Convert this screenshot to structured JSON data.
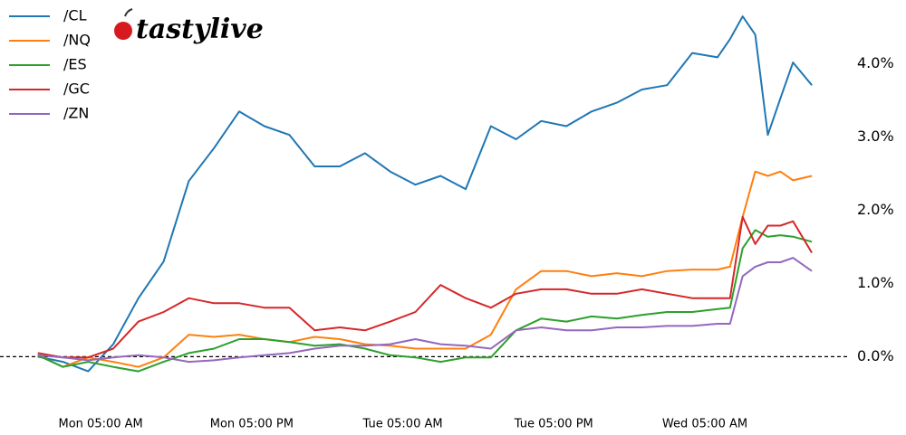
{
  "logo": "tastylive",
  "chart_data": {
    "type": "line",
    "x": [
      0,
      2,
      4,
      6,
      8,
      10,
      12,
      14,
      16,
      18,
      20,
      22,
      24,
      26,
      28,
      30,
      32,
      34,
      36,
      38,
      40,
      42,
      44,
      46,
      48,
      50,
      52,
      54,
      55,
      56,
      57,
      58,
      59,
      60,
      61.5
    ],
    "series": [
      {
        "name": "/CL",
        "color": "#1f77b4",
        "values": [
          0.0,
          -0.07,
          -0.2,
          0.17,
          0.8,
          1.3,
          2.4,
          2.85,
          3.35,
          3.15,
          3.03,
          2.6,
          2.6,
          2.78,
          2.53,
          2.35,
          2.47,
          2.29,
          3.15,
          2.97,
          3.22,
          3.15,
          3.35,
          3.47,
          3.65,
          3.71,
          4.15,
          4.09,
          4.34,
          4.65,
          4.4,
          3.03,
          3.53,
          4.02,
          3.71
        ]
      },
      {
        "name": "/NQ",
        "color": "#ff7f0e",
        "values": [
          0.02,
          -0.14,
          -0.01,
          -0.07,
          -0.14,
          -0.01,
          0.3,
          0.27,
          0.3,
          0.24,
          0.2,
          0.27,
          0.24,
          0.17,
          0.15,
          0.11,
          0.11,
          0.11,
          0.3,
          0.92,
          1.17,
          1.17,
          1.1,
          1.14,
          1.1,
          1.17,
          1.19,
          1.19,
          1.23,
          1.91,
          2.53,
          2.47,
          2.53,
          2.41,
          2.47
        ]
      },
      {
        "name": "/ES",
        "color": "#2ca02c",
        "values": [
          0.02,
          -0.14,
          -0.07,
          -0.14,
          -0.2,
          -0.07,
          0.05,
          0.11,
          0.24,
          0.24,
          0.2,
          0.15,
          0.17,
          0.11,
          0.02,
          -0.01,
          -0.07,
          -0.01,
          -0.01,
          0.36,
          0.52,
          0.48,
          0.55,
          0.52,
          0.57,
          0.61,
          0.61,
          0.65,
          0.67,
          1.48,
          1.73,
          1.64,
          1.66,
          1.64,
          1.57
        ]
      },
      {
        "name": "/GC",
        "color": "#d62728",
        "values": [
          0.05,
          -0.01,
          -0.01,
          0.11,
          0.48,
          0.61,
          0.8,
          0.73,
          0.73,
          0.67,
          0.67,
          0.36,
          0.4,
          0.36,
          0.48,
          0.61,
          0.98,
          0.8,
          0.67,
          0.86,
          0.92,
          0.92,
          0.86,
          0.86,
          0.92,
          0.86,
          0.8,
          0.8,
          0.8,
          1.91,
          1.54,
          1.79,
          1.79,
          1.85,
          1.42
        ]
      },
      {
        "name": "/ZN",
        "color": "#9467bd",
        "values": [
          0.02,
          -0.01,
          -0.05,
          -0.01,
          0.02,
          -0.01,
          -0.07,
          -0.05,
          -0.01,
          0.02,
          0.05,
          0.11,
          0.15,
          0.15,
          0.17,
          0.24,
          0.17,
          0.15,
          0.11,
          0.36,
          0.4,
          0.36,
          0.36,
          0.4,
          0.4,
          0.42,
          0.42,
          0.45,
          0.45,
          1.1,
          1.23,
          1.29,
          1.29,
          1.35,
          1.17
        ]
      }
    ],
    "xlim": [
      -3,
      64.3
    ],
    "xticks": [
      {
        "value": 5,
        "label": "Mon 05:00 AM"
      },
      {
        "value": 17,
        "label": "Mon 05:00 PM"
      },
      {
        "value": 29,
        "label": "Tue 05:00 AM"
      },
      {
        "value": 41,
        "label": "Tue 05:00 PM"
      },
      {
        "value": 53,
        "label": "Wed 05:00 AM"
      }
    ],
    "ylim": [
      -0.65,
      4.75
    ],
    "yticks": [
      {
        "value": 0,
        "label": "0.0%"
      },
      {
        "value": 1,
        "label": "1.0%"
      },
      {
        "value": 2,
        "label": "2.0%"
      },
      {
        "value": 3,
        "label": "3.0%"
      },
      {
        "value": 4,
        "label": "4.0%"
      }
    ],
    "baseline": 0,
    "legend": "upper-left"
  }
}
